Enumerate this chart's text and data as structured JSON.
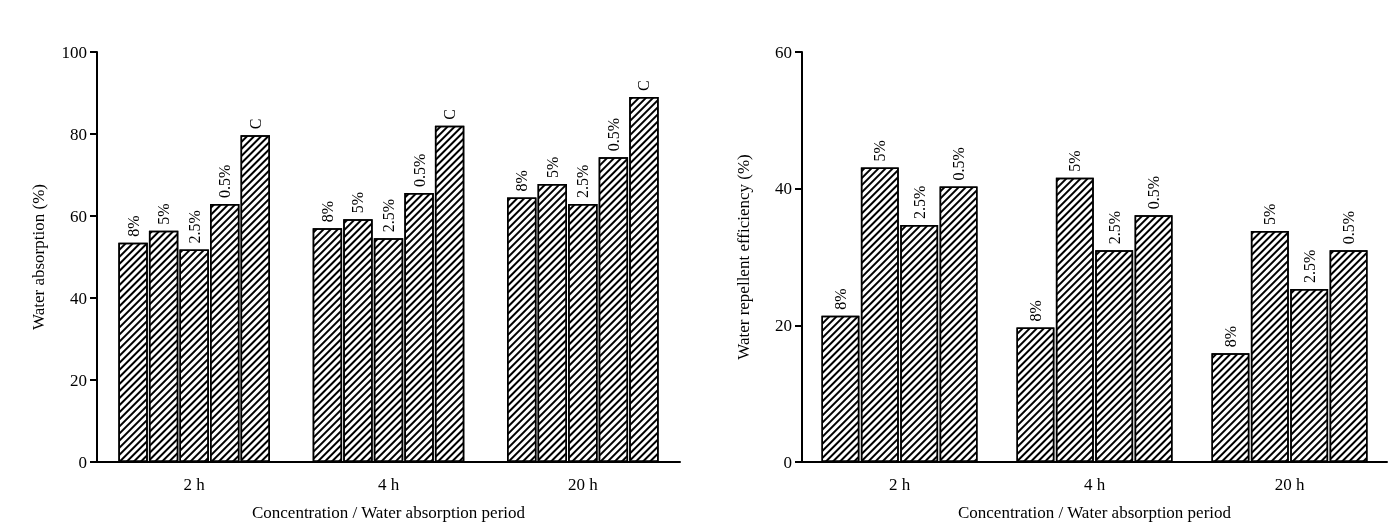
{
  "chart_data": [
    {
      "type": "bar",
      "categories": [
        "2 h",
        "4 h",
        "20 h"
      ],
      "xlabel": "Concentration / Water absorption period",
      "ylabel": "Water absorption (%)",
      "ylim": [
        0,
        100
      ],
      "yticks": [
        0,
        20,
        40,
        60,
        80,
        100
      ],
      "grid": false,
      "legend": false,
      "series": [
        {
          "name": "8%",
          "color": "#ffffff",
          "values": [
            53.5,
            57,
            64.5
          ]
        },
        {
          "name": "5%",
          "color": "#ffffff",
          "values": [
            56.4,
            59.2,
            67.8
          ]
        },
        {
          "name": "2.5%",
          "color": "#ffffff",
          "values": [
            51.8,
            54.6,
            62.9
          ]
        },
        {
          "name": "0.5%",
          "color": "#ffffff",
          "values": [
            62.9,
            65.6,
            74.3
          ]
        },
        {
          "name": "C",
          "color": "#ffffff",
          "values": [
            79.7,
            82,
            89
          ]
        }
      ]
    },
    {
      "type": "bar",
      "categories": [
        "2 h",
        "4 h",
        "20 h"
      ],
      "xlabel": "Concentration / Water absorption period",
      "ylabel": "Water repellent efficiency (%)",
      "ylim": [
        0,
        60
      ],
      "yticks": [
        0,
        20,
        40,
        60
      ],
      "grid": false,
      "legend": false,
      "series": [
        {
          "name": "8%",
          "color": "#ffffff",
          "values": [
            21.4,
            19.7,
            15.9
          ]
        },
        {
          "name": "5%",
          "color": "#ffffff",
          "values": [
            43.1,
            41.6,
            33.8
          ]
        },
        {
          "name": "2.5%",
          "color": "#ffffff",
          "values": [
            34.7,
            31.0,
            25.3
          ]
        },
        {
          "name": "0.5%",
          "color": "#ffffff",
          "values": [
            40.3,
            36.1,
            31.0
          ]
        }
      ]
    }
  ]
}
